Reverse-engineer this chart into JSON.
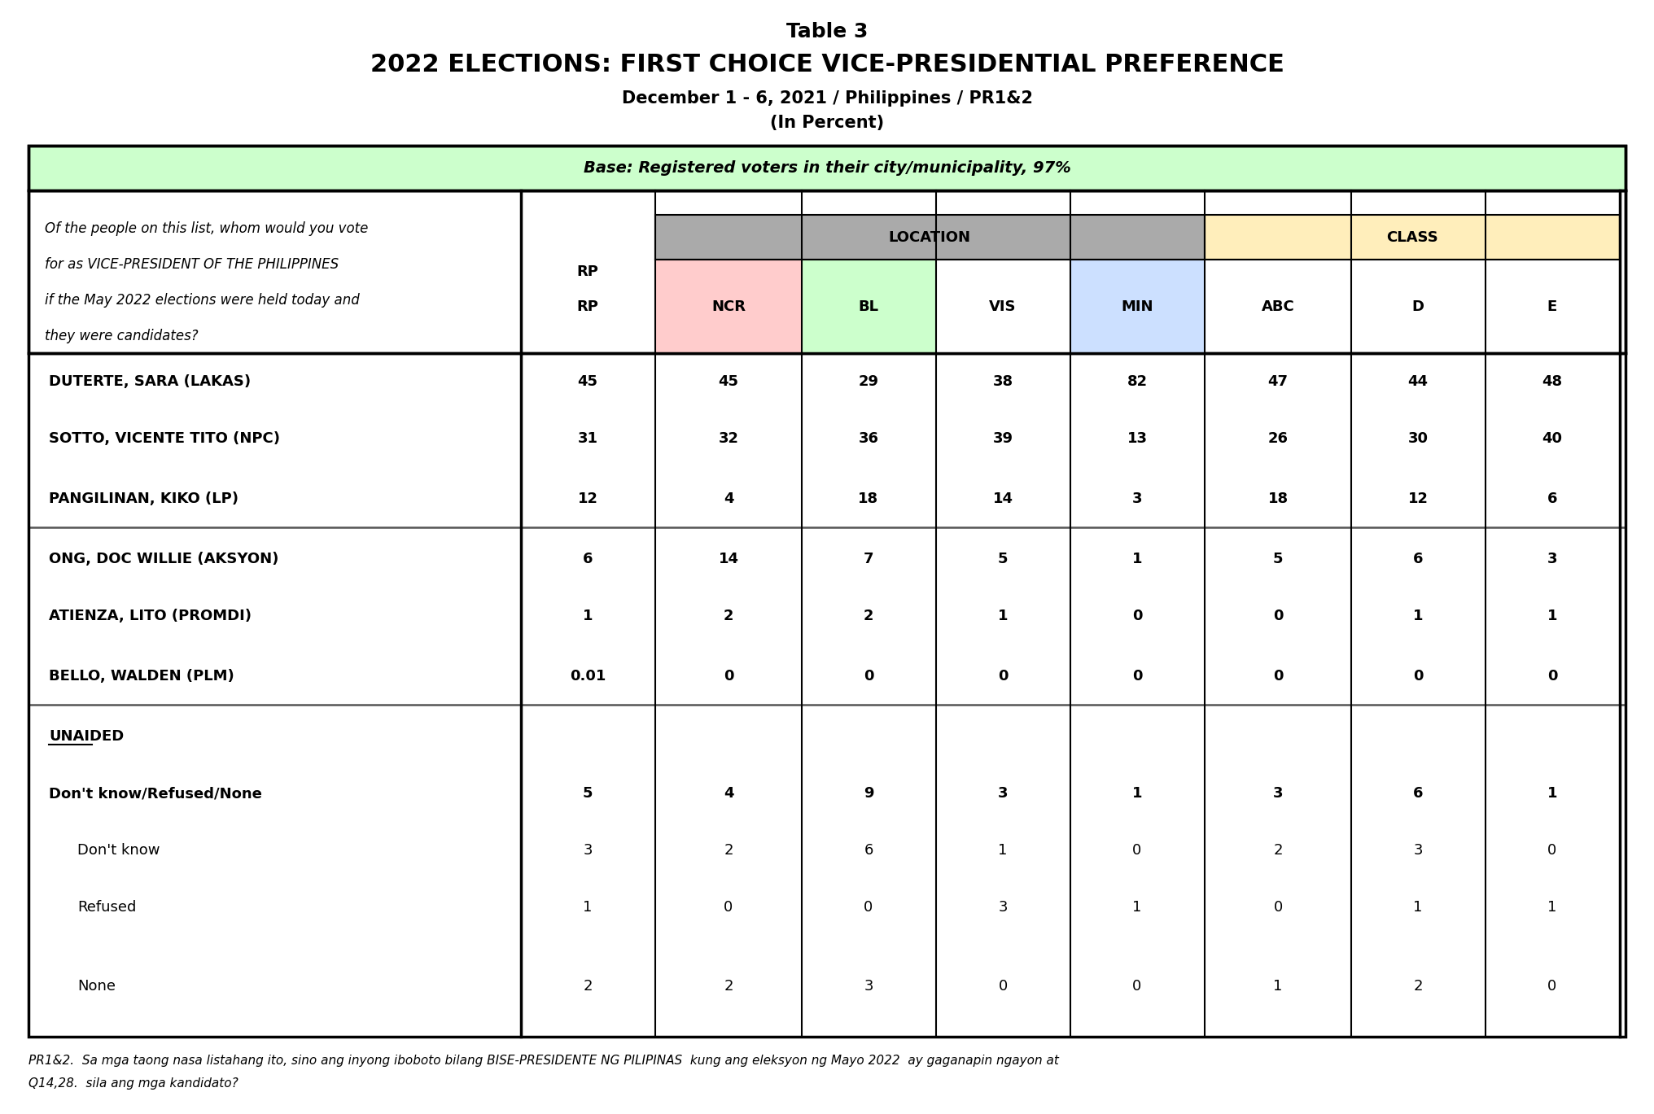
{
  "title_line1": "Table 3",
  "title_line2": "2022 ELECTIONS: FIRST CHOICE VICE-PRESIDENTIAL PREFERENCE",
  "title_line3": "December 1 - 6, 2021 / Philippines / PR1&2",
  "title_line4": "(In Percent)",
  "base_text": "Base: Registered voters in their city/municipality, 97%",
  "question_lines": [
    "Of the people on this list, whom would you vote",
    "for as VICE-PRESIDENT OF THE PHILIPPINES",
    "if the May 2022 elections were held today and",
    "they were candidates?"
  ],
  "location_group": "LOCATION",
  "class_group": "CLASS",
  "col_names": [
    "RP",
    "NCR",
    "BL",
    "VIS",
    "MIN",
    "ABC",
    "D",
    "E"
  ],
  "rows": [
    {
      "label": "DUTERTE, SARA (LAKAS)",
      "values": [
        "45",
        "45",
        "29",
        "38",
        "82",
        "47",
        "44",
        "48"
      ],
      "bold": true,
      "indent": 0,
      "type": "data"
    },
    {
      "label": "SOTTO, VICENTE TITO (NPC)",
      "values": [
        "31",
        "32",
        "36",
        "39",
        "13",
        "26",
        "30",
        "40"
      ],
      "bold": true,
      "indent": 0,
      "type": "data"
    },
    {
      "label": "PANGILINAN, KIKO (LP)",
      "values": [
        "12",
        "4",
        "18",
        "14",
        "3",
        "18",
        "12",
        "6"
      ],
      "bold": true,
      "indent": 0,
      "type": "data"
    },
    {
      "label": "ONG, DOC WILLIE (AKSYON)",
      "values": [
        "6",
        "14",
        "7",
        "5",
        "1",
        "5",
        "6",
        "3"
      ],
      "bold": true,
      "indent": 0,
      "type": "data"
    },
    {
      "label": "ATIENZA, LITO (PROMDI)",
      "values": [
        "1",
        "2",
        "2",
        "1",
        "0",
        "0",
        "1",
        "1"
      ],
      "bold": true,
      "indent": 0,
      "type": "data"
    },
    {
      "label": "BELLO, WALDEN (PLM)",
      "values": [
        "0.01",
        "0",
        "0",
        "0",
        "0",
        "0",
        "0",
        "0"
      ],
      "bold": true,
      "indent": 0,
      "type": "data"
    },
    {
      "label": "UNAIDED",
      "values": [
        "",
        "",
        "",
        "",
        "",
        "",
        "",
        ""
      ],
      "bold": true,
      "indent": 0,
      "type": "section"
    },
    {
      "label": "Don't know/Refused/None",
      "values": [
        "5",
        "4",
        "9",
        "3",
        "1",
        "3",
        "6",
        "1"
      ],
      "bold": true,
      "indent": 0,
      "type": "data"
    },
    {
      "label": "Don't know",
      "values": [
        "3",
        "2",
        "6",
        "1",
        "0",
        "2",
        "3",
        "0"
      ],
      "bold": false,
      "indent": 1,
      "type": "data"
    },
    {
      "label": "Refused",
      "values": [
        "1",
        "0",
        "0",
        "3",
        "1",
        "0",
        "1",
        "1"
      ],
      "bold": false,
      "indent": 1,
      "type": "data"
    },
    {
      "label": "None",
      "values": [
        "2",
        "2",
        "3",
        "0",
        "0",
        "1",
        "2",
        "0"
      ],
      "bold": false,
      "indent": 1,
      "type": "data"
    }
  ],
  "separator_after_rows": [
    2,
    5
  ],
  "footnote_lines": [
    "PR1&2.  Sa mga taong nasa listahang ito, sino ang inyong iboboto bilang BISE-PRESIDENTE NG PILIPINAS  kung ang eleksyon ng Mayo 2022  ay gaganapin ngayon at",
    "Q14,28.  sila ang mga kandidato?"
  ],
  "bg_color": "#ffffff",
  "base_bg_color": "#ccffcc",
  "location_header_bg": "#aaaaaa",
  "ncr_bg": "#ffcccc",
  "bl_bg": "#ccffcc",
  "vis_bg": "#ffffff",
  "min_bg": "#cce0ff",
  "class_header_bg": "#ffeebb",
  "border_color": "#000000",
  "separator_color": "#555555"
}
